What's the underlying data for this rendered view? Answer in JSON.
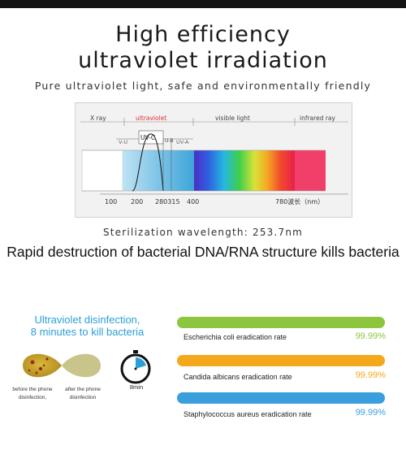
{
  "header": {
    "title_line1": "High efficiency",
    "title_line2": "ultraviolet irradiation",
    "subtitle": "Pure ultraviolet light, safe and environmentally friendly"
  },
  "spectrum": {
    "region_labels": {
      "xray": "X ray",
      "ultraviolet": "ultraviolet",
      "visible": "visible light",
      "infrared": "infrared ray"
    },
    "band_labels": {
      "uvb": "V-U",
      "uvc": "UV-C",
      "uvb_small": "U-B",
      "uva": "UV-A"
    },
    "ticks": [
      "100",
      "200",
      "280315",
      "400",
      "780波长（nm）"
    ],
    "colors": {
      "uv_accent": "#e0303a",
      "uv_blue": "#3da5d9",
      "infrared": "#f0406a"
    }
  },
  "sterilization_wavelength": "Sterilization wavelength: 253.7nm",
  "headline": "Rapid destruction of bacterial DNA/RNA structure kills bacteria",
  "disinfection": {
    "title_line1": "Ultraviolet disinfection,",
    "title_line2": "8 minutes to kill bacteria",
    "before_line1": "before the phone",
    "before_line2": "disinfection,",
    "after_line1": "after the phone",
    "after_line2": "disinfection",
    "timer_label": "8min",
    "accent": "#2a9fd8"
  },
  "rates": [
    {
      "label": "Escherichia coli eradication rate",
      "percent": "99.99%",
      "color": "#8cc63f",
      "fill": 0.9999
    },
    {
      "label": "Candida albicans eradication rate",
      "percent": "99.99%",
      "color": "#f4a81c",
      "fill": 0.9999
    },
    {
      "label": "Staphylococcus aureus eradication rate",
      "percent": "99.99%",
      "color": "#3a9fdc",
      "fill": 0.9999
    }
  ]
}
